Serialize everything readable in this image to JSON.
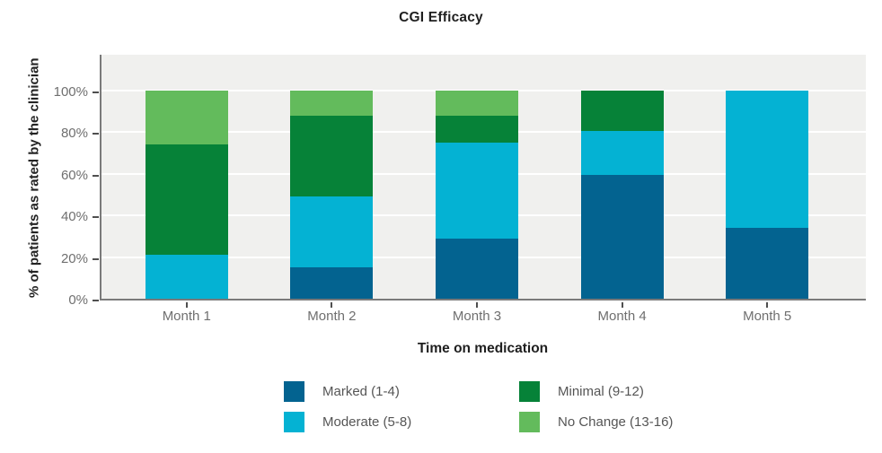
{
  "chart_data": {
    "type": "bar",
    "stacked": true,
    "title": "CGI Efficacy",
    "xlabel": "Time on medication",
    "ylabel": "% of patients as rated by the clinician",
    "ylim": [
      0,
      100
    ],
    "ytick_values": [
      0,
      20,
      40,
      60,
      80,
      100
    ],
    "ytick_suffix": "%",
    "grid": "horizontal white gridlines on light-gray plot background",
    "legend_position": "bottom, two columns",
    "categories": [
      "Month 1",
      "Month 2",
      "Month 3",
      "Month 4",
      "Month 5"
    ],
    "series": [
      {
        "name": "Marked (1-4)",
        "color": "#036390",
        "values": [
          0,
          15,
          29,
          59.5,
          34
        ]
      },
      {
        "name": "Moderate (5-8)",
        "color": "#04b2d3",
        "values": [
          21,
          34,
          46,
          21,
          66
        ]
      },
      {
        "name": "Minimal (9-12)",
        "color": "#068238",
        "values": [
          53,
          39,
          13,
          19.5,
          0
        ]
      },
      {
        "name": "No Change (13-16)",
        "color": "#63bb5c",
        "values": [
          26,
          12,
          12,
          0,
          0
        ]
      }
    ],
    "legend_columns": [
      [
        0,
        1
      ],
      [
        2,
        3
      ]
    ]
  },
  "colors": {
    "plot_bg": "#f0f0ee",
    "gridline": "#ffffff",
    "axis_line": "#7a7a7a",
    "tick_mark": "#4f4f4f",
    "tick_label": "#6f6f6f",
    "category_label": "#6f6f6f",
    "legend_label": "#555555",
    "title_text": "#1f1f1f"
  }
}
